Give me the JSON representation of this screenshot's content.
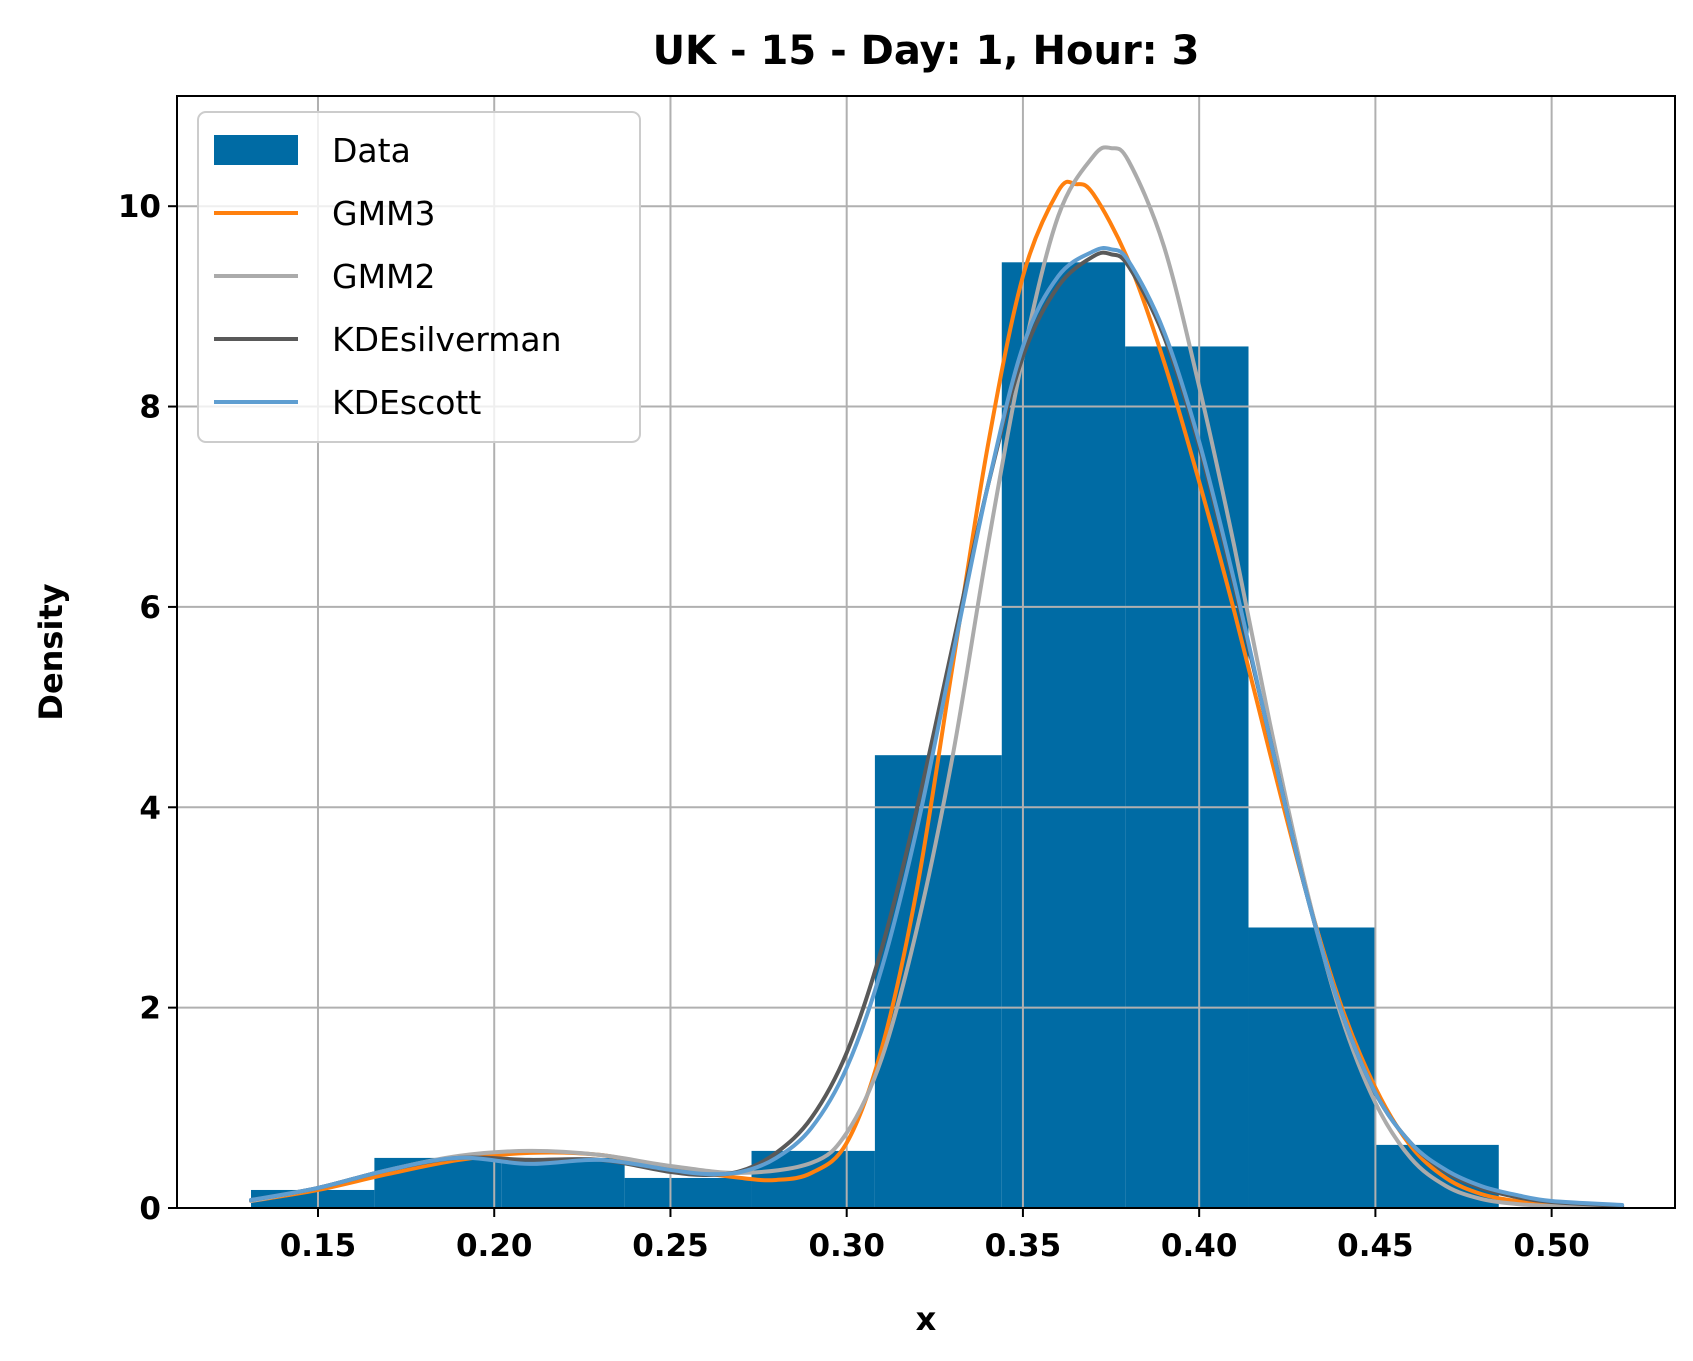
{
  "chart_data": {
    "type": "histogram",
    "title": "UK - 15 - Day: 1, Hour: 3",
    "xlabel": "x",
    "ylabel": "Density",
    "xlim": [
      0.11,
      0.535
    ],
    "ylim": [
      0,
      11.1
    ],
    "grid": true,
    "legend_position": "top-left",
    "xticks": [
      0.15,
      0.2,
      0.25,
      0.3,
      0.35,
      0.4,
      0.45,
      0.5
    ],
    "xtick_labels": [
      "0.15",
      "0.20",
      "0.25",
      "0.30",
      "0.35",
      "0.40",
      "0.45",
      "0.50"
    ],
    "yticks": [
      0,
      2,
      4,
      6,
      8,
      10
    ],
    "ytick_labels": [
      "0",
      "2",
      "4",
      "6",
      "8",
      "10"
    ],
    "histogram": {
      "name": "Data",
      "color": "#006ba4",
      "bins": [
        {
          "x0": 0.131,
          "x1": 0.166,
          "density": 0.18
        },
        {
          "x0": 0.166,
          "x1": 0.202,
          "density": 0.5
        },
        {
          "x0": 0.202,
          "x1": 0.237,
          "density": 0.5
        },
        {
          "x0": 0.237,
          "x1": 0.273,
          "density": 0.3
        },
        {
          "x0": 0.273,
          "x1": 0.308,
          "density": 0.57
        },
        {
          "x0": 0.308,
          "x1": 0.344,
          "density": 4.52
        },
        {
          "x0": 0.344,
          "x1": 0.379,
          "density": 9.44
        },
        {
          "x0": 0.379,
          "x1": 0.414,
          "density": 8.6
        },
        {
          "x0": 0.414,
          "x1": 0.45,
          "density": 2.8
        },
        {
          "x0": 0.45,
          "x1": 0.485,
          "density": 0.63
        }
      ]
    },
    "series": [
      {
        "name": "GMM3",
        "color": "#ff800e",
        "x": [
          0.131,
          0.15,
          0.17,
          0.19,
          0.21,
          0.23,
          0.25,
          0.27,
          0.28,
          0.29,
          0.3,
          0.31,
          0.32,
          0.33,
          0.34,
          0.35,
          0.36,
          0.365,
          0.37,
          0.38,
          0.39,
          0.4,
          0.41,
          0.42,
          0.43,
          0.44,
          0.45,
          0.46,
          0.47,
          0.48,
          0.49,
          0.5,
          0.52
        ],
        "y": [
          0.07,
          0.18,
          0.34,
          0.48,
          0.55,
          0.53,
          0.4,
          0.3,
          0.28,
          0.35,
          0.65,
          1.6,
          3.2,
          5.4,
          7.6,
          9.3,
          10.15,
          10.22,
          10.12,
          9.45,
          8.45,
          7.25,
          5.95,
          4.55,
          3.2,
          2.05,
          1.2,
          0.62,
          0.3,
          0.14,
          0.07,
          0.04,
          0.02
        ]
      },
      {
        "name": "GMM2",
        "color": "#ababab",
        "x": [
          0.131,
          0.15,
          0.17,
          0.19,
          0.21,
          0.23,
          0.25,
          0.27,
          0.29,
          0.3,
          0.31,
          0.32,
          0.33,
          0.34,
          0.35,
          0.36,
          0.37,
          0.375,
          0.38,
          0.39,
          0.4,
          0.41,
          0.42,
          0.43,
          0.44,
          0.45,
          0.46,
          0.47,
          0.48,
          0.49,
          0.5,
          0.52
        ],
        "y": [
          0.07,
          0.2,
          0.38,
          0.52,
          0.57,
          0.53,
          0.42,
          0.35,
          0.45,
          0.75,
          1.5,
          2.8,
          4.5,
          6.6,
          8.5,
          9.9,
          10.5,
          10.58,
          10.45,
          9.6,
          8.2,
          6.6,
          4.85,
          3.25,
          1.95,
          1.05,
          0.5,
          0.22,
          0.09,
          0.04,
          0.02,
          0.01
        ]
      },
      {
        "name": "KDEsilverman",
        "color": "#595959",
        "x": [
          0.131,
          0.15,
          0.17,
          0.19,
          0.21,
          0.23,
          0.25,
          0.26,
          0.27,
          0.28,
          0.29,
          0.3,
          0.31,
          0.32,
          0.33,
          0.34,
          0.35,
          0.36,
          0.37,
          0.375,
          0.38,
          0.39,
          0.4,
          0.41,
          0.42,
          0.43,
          0.44,
          0.45,
          0.46,
          0.47,
          0.48,
          0.49,
          0.5,
          0.52
        ],
        "y": [
          0.08,
          0.2,
          0.38,
          0.5,
          0.48,
          0.48,
          0.36,
          0.33,
          0.37,
          0.55,
          0.9,
          1.55,
          2.6,
          4.0,
          5.6,
          7.2,
          8.5,
          9.2,
          9.5,
          9.52,
          9.4,
          8.7,
          7.6,
          6.2,
          4.7,
          3.2,
          2.0,
          1.15,
          0.65,
          0.36,
          0.2,
          0.11,
          0.06,
          0.02
        ]
      },
      {
        "name": "KDEscott",
        "color": "#5f9ed1",
        "x": [
          0.131,
          0.15,
          0.17,
          0.19,
          0.21,
          0.23,
          0.25,
          0.26,
          0.27,
          0.28,
          0.29,
          0.3,
          0.31,
          0.32,
          0.33,
          0.34,
          0.35,
          0.36,
          0.37,
          0.375,
          0.38,
          0.39,
          0.4,
          0.41,
          0.42,
          0.43,
          0.44,
          0.45,
          0.46,
          0.47,
          0.48,
          0.49,
          0.5,
          0.52
        ],
        "y": [
          0.08,
          0.2,
          0.38,
          0.5,
          0.44,
          0.48,
          0.38,
          0.34,
          0.36,
          0.5,
          0.8,
          1.4,
          2.4,
          3.8,
          5.5,
          7.2,
          8.6,
          9.3,
          9.55,
          9.57,
          9.45,
          8.75,
          7.65,
          6.25,
          4.7,
          3.2,
          2.0,
          1.15,
          0.65,
          0.38,
          0.22,
          0.13,
          0.07,
          0.03
        ]
      }
    ]
  }
}
